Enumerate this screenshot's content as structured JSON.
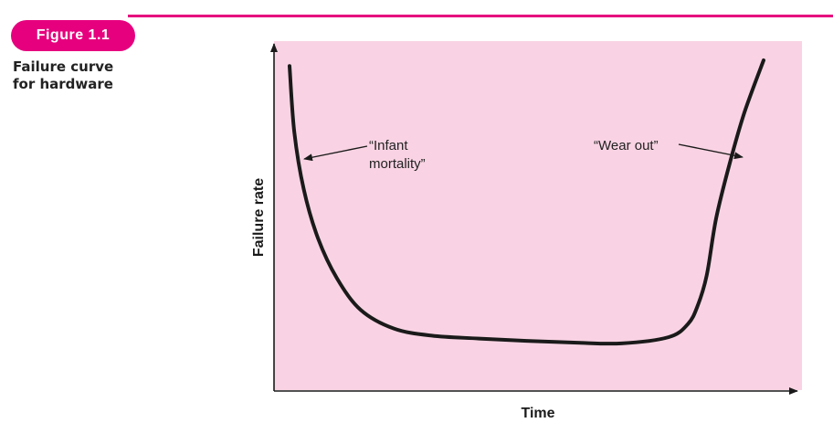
{
  "figure": {
    "label": "Figure 1.1",
    "caption_lines": [
      "Failure curve",
      "for hardware"
    ]
  },
  "chart_data": {
    "type": "line",
    "title": "",
    "xlabel": "Time",
    "ylabel": "Failure rate",
    "grid": false,
    "axis_ticks": false,
    "annotations": [
      {
        "id": "infant",
        "lines": [
          "“Infant",
          "mortality”"
        ]
      },
      {
        "id": "wearout",
        "lines": [
          "“Wear out”"
        ]
      }
    ],
    "series": [
      {
        "curve": "bathtub",
        "x": [
          0.0,
          0.01,
          0.03,
          0.06,
          0.1,
          0.15,
          0.22,
          0.3,
          0.4,
          0.5,
          0.6,
          0.7,
          0.8,
          0.84,
          0.86,
          0.88,
          0.9,
          0.93,
          0.96,
          1.0
        ],
        "y": [
          0.98,
          0.75,
          0.55,
          0.38,
          0.24,
          0.13,
          0.065,
          0.04,
          0.03,
          0.022,
          0.016,
          0.013,
          0.035,
          0.08,
          0.14,
          0.25,
          0.45,
          0.65,
          0.82,
          1.0
        ]
      }
    ],
    "colors": {
      "plot_background": "#f9d3e3",
      "curve": "#1a1a1a",
      "accent": "#e6007e"
    }
  }
}
